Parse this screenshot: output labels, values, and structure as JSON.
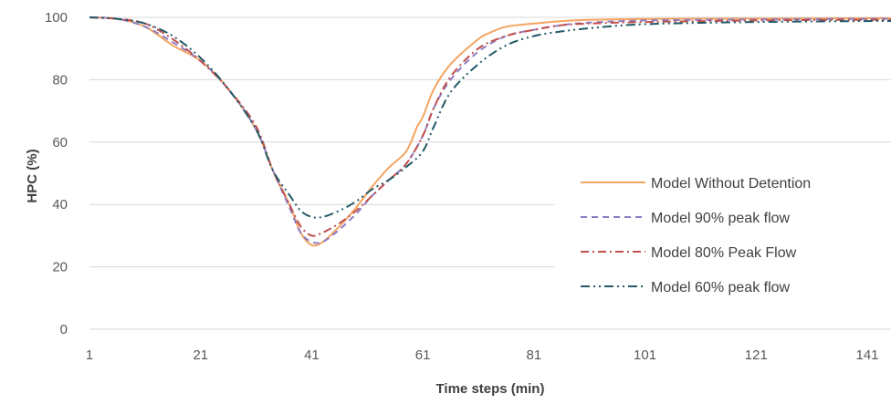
{
  "chart_data": {
    "type": "line",
    "title": "",
    "xlabel": "Time steps (min)",
    "ylabel": "HPC (%)",
    "xlim": [
      1,
      147
    ],
    "ylim": [
      0,
      100
    ],
    "x_ticks": [
      1,
      21,
      41,
      61,
      81,
      101,
      121,
      141
    ],
    "y_ticks": [
      0,
      20,
      40,
      60,
      80,
      100
    ],
    "grid": "horizontal",
    "legend_position": "right",
    "series": [
      {
        "name": "Model Without Detention",
        "color": "#F4A460",
        "dash": "solid",
        "points": [
          [
            1,
            100
          ],
          [
            6,
            99.5
          ],
          [
            11,
            97
          ],
          [
            16,
            91
          ],
          [
            21,
            86
          ],
          [
            26,
            77
          ],
          [
            31,
            64
          ],
          [
            34,
            51
          ],
          [
            37,
            40
          ],
          [
            39,
            31
          ],
          [
            41,
            27
          ],
          [
            43,
            28
          ],
          [
            46,
            33
          ],
          [
            49,
            39
          ],
          [
            52,
            46
          ],
          [
            55,
            52
          ],
          [
            58,
            57
          ],
          [
            60,
            65
          ],
          [
            61,
            68
          ],
          [
            63,
            77
          ],
          [
            66,
            85
          ],
          [
            71,
            93
          ],
          [
            73,
            95
          ],
          [
            76,
            97
          ],
          [
            81,
            98
          ],
          [
            86,
            98.8
          ],
          [
            91,
            99.2
          ],
          [
            101,
            99.5
          ],
          [
            121,
            99.6
          ],
          [
            141,
            99.7
          ],
          [
            147,
            99.7
          ]
        ]
      },
      {
        "name": "Model 90% peak flow",
        "color": "#8E7CC3",
        "dash": "dashed",
        "points": [
          [
            1,
            100
          ],
          [
            6,
            99.5
          ],
          [
            11,
            97
          ],
          [
            16,
            92
          ],
          [
            21,
            86
          ],
          [
            26,
            77
          ],
          [
            31,
            64
          ],
          [
            34,
            51
          ],
          [
            37,
            39
          ],
          [
            39,
            31
          ],
          [
            41,
            28
          ],
          [
            43,
            28
          ],
          [
            46,
            32
          ],
          [
            49,
            37
          ],
          [
            52,
            43
          ],
          [
            55,
            48
          ],
          [
            58,
            53
          ],
          [
            61,
            62
          ],
          [
            63,
            71
          ],
          [
            66,
            80
          ],
          [
            71,
            89
          ],
          [
            76,
            94
          ],
          [
            81,
            96
          ],
          [
            86,
            97.5
          ],
          [
            91,
            98.3
          ],
          [
            101,
            99
          ],
          [
            121,
            99.3
          ],
          [
            141,
            99.5
          ],
          [
            147,
            99.5
          ]
        ]
      },
      {
        "name": "Model 80% Peak Flow",
        "color": "#C0504D",
        "dash": "dashdot",
        "points": [
          [
            1,
            100
          ],
          [
            6,
            99.5
          ],
          [
            11,
            98
          ],
          [
            16,
            93
          ],
          [
            21,
            86
          ],
          [
            26,
            77
          ],
          [
            31,
            65
          ],
          [
            34,
            51
          ],
          [
            37,
            40
          ],
          [
            39,
            33
          ],
          [
            41,
            30
          ],
          [
            43,
            31
          ],
          [
            46,
            34
          ],
          [
            49,
            38
          ],
          [
            52,
            43
          ],
          [
            55,
            48
          ],
          [
            58,
            53
          ],
          [
            61,
            62
          ],
          [
            63,
            71
          ],
          [
            66,
            81
          ],
          [
            71,
            90
          ],
          [
            76,
            94
          ],
          [
            81,
            96
          ],
          [
            86,
            97.5
          ],
          [
            91,
            98
          ],
          [
            101,
            98.5
          ],
          [
            121,
            99
          ],
          [
            141,
            99.2
          ],
          [
            147,
            99.2
          ]
        ]
      },
      {
        "name": "Model 60% peak flow",
        "color": "#215967",
        "dash": "dashdotdot",
        "points": [
          [
            1,
            100
          ],
          [
            6,
            99.5
          ],
          [
            11,
            98
          ],
          [
            16,
            94
          ],
          [
            21,
            87
          ],
          [
            26,
            77
          ],
          [
            31,
            64
          ],
          [
            34,
            51
          ],
          [
            37,
            43
          ],
          [
            39,
            38
          ],
          [
            41,
            36
          ],
          [
            43,
            36
          ],
          [
            46,
            38
          ],
          [
            49,
            41
          ],
          [
            52,
            45
          ],
          [
            55,
            48
          ],
          [
            58,
            52
          ],
          [
            61,
            57
          ],
          [
            63,
            65
          ],
          [
            66,
            76
          ],
          [
            71,
            85
          ],
          [
            76,
            91
          ],
          [
            81,
            94
          ],
          [
            86,
            95.5
          ],
          [
            91,
            96.5
          ],
          [
            101,
            97.8
          ],
          [
            121,
            98.5
          ],
          [
            141,
            98.8
          ],
          [
            147,
            98.8
          ]
        ]
      }
    ]
  }
}
